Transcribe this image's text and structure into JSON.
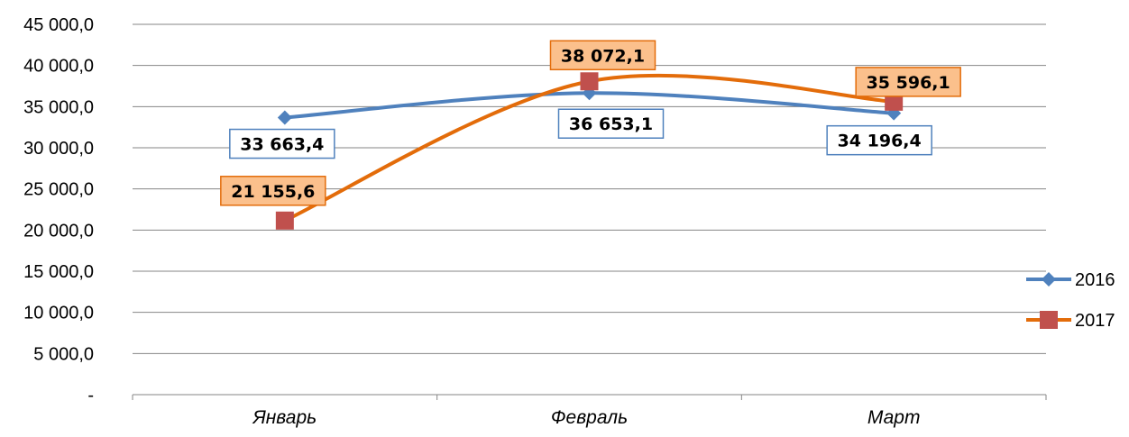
{
  "chart_data": {
    "type": "line",
    "categories": [
      "Январь",
      "Февраль",
      "Март"
    ],
    "series": [
      {
        "name": "2016",
        "values": [
          33663.4,
          36653.1,
          34196.4
        ],
        "labels": [
          "33 663,4",
          "36 653,1",
          "34 196,4"
        ],
        "color": "#4F81BD",
        "marker": "diamond",
        "label_border": "#4F81BD",
        "label_fill": "#FFFFFF"
      },
      {
        "name": "2017",
        "values": [
          21155.6,
          38072.1,
          35596.1
        ],
        "labels": [
          "21 155,6",
          "38 072,1",
          "35 596,1"
        ],
        "color": "#E36C0A",
        "marker": "square",
        "marker_color": "#C0504D",
        "label_border": "#E36C0A",
        "label_fill": "#FBC08C"
      }
    ],
    "ylim": [
      0,
      45000
    ],
    "yticks": [
      0,
      5000,
      10000,
      15000,
      20000,
      25000,
      30000,
      35000,
      40000,
      45000
    ],
    "ytick_labels": [
      "-",
      "5 000,0",
      "10 000,0",
      "15 000,0",
      "20 000,0",
      "25 000,0",
      "30 000,0",
      "35 000,0",
      "40 000,0",
      "45 000,0"
    ],
    "grid": true,
    "smooth": true,
    "legend_position": "right"
  }
}
